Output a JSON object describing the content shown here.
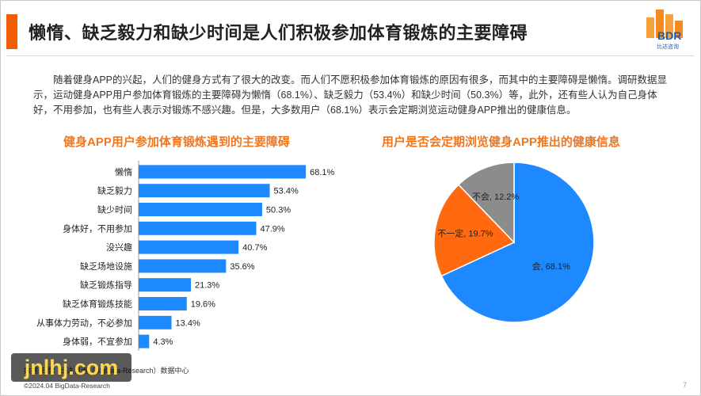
{
  "slide": {
    "title": "懒惰、缺乏毅力和缺少时间是人们积极参加体育锻炼的主要障碍",
    "intro": "随着健身APP的兴起，人们的健身方式有了很大的改变。而人们不愿积极参加体育锻炼的原因有很多，而其中的主要障碍是懒惰。调研数据显示，运动健身APP用户参加体育锻炼的主要障碍为懒惰（68.1%）、缺乏毅力（53.4%）和缺少时间（50.3%）等，此外，还有些人认为自己身体好，不用参加，也有些人表示对锻炼不感兴趣。但是，大多数用户（68.1%）表示会定期浏览运动健身APP推出的健康信息。",
    "source": "数据来源：比达咨询（BigData-Research）数据中心",
    "copyright": "©2024.04 BigData-Research",
    "page_number": "7",
    "watermark": "jnlhj.com"
  },
  "logo": {
    "text": "BDR",
    "subtitle": "比达咨询"
  },
  "colors": {
    "accent": "#f25c05",
    "chart_title": "#f0761f",
    "bar": "#1e88ff",
    "pie_yes": "#1e88ff",
    "pie_maybe": "#ff6a10",
    "pie_no": "#8c8c8c"
  },
  "chart_data": [
    {
      "type": "bar",
      "orientation": "horizontal",
      "title": "健身APP用户参加体育锻炼遇到的主要障碍",
      "categories": [
        "懒惰",
        "缺乏毅力",
        "缺少时间",
        "身体好，不用参加",
        "没兴趣",
        "缺乏场地设施",
        "缺乏锻炼指导",
        "缺乏体育锻炼技能",
        "从事体力劳动，不必参加",
        "身体弱，不宜参加"
      ],
      "values": [
        68.1,
        53.4,
        50.3,
        47.9,
        40.7,
        35.6,
        21.3,
        19.6,
        13.4,
        4.3
      ],
      "value_labels": [
        "68.1%",
        "53.4%",
        "50.3%",
        "47.9%",
        "40.7%",
        "35.6%",
        "21.3%",
        "19.6%",
        "13.4%",
        "4.3%"
      ],
      "xlim": [
        0,
        100
      ],
      "grid": false,
      "legend": "none"
    },
    {
      "type": "pie",
      "title": "用户是否会定期浏览健身APP推出的健康信息",
      "slices": [
        {
          "label": "会",
          "value": 68.1,
          "text": "会, 68.1%"
        },
        {
          "label": "不一定",
          "value": 19.7,
          "text": "不一定, 19.7%"
        },
        {
          "label": "不会",
          "value": 12.2,
          "text": "不会, 12.2%"
        }
      ],
      "legend": "none"
    }
  ]
}
